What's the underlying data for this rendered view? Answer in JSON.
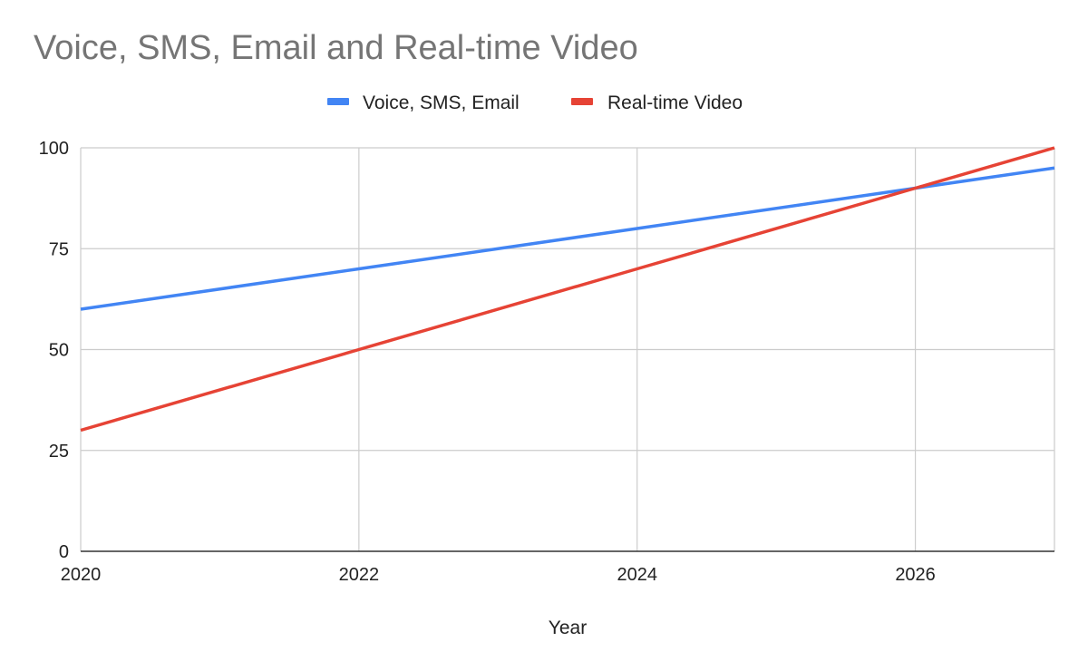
{
  "chart_data": {
    "type": "line",
    "title": "Voice, SMS, Email and Real-time Video",
    "xlabel": "Year",
    "ylabel": "",
    "x": [
      2020,
      2022,
      2024,
      2026,
      2027
    ],
    "xlim": [
      2020,
      2027
    ],
    "ylim": [
      0,
      100
    ],
    "x_ticks": [
      "2020",
      "2022",
      "2024",
      "2026"
    ],
    "y_ticks": [
      "0",
      "25",
      "50",
      "75",
      "100"
    ],
    "grid": true,
    "legend_position": "top",
    "series": [
      {
        "name": "Voice, SMS, Email",
        "color": "#4285F4",
        "values": [
          60,
          70,
          80,
          90,
          95
        ]
      },
      {
        "name": "Real-time Video",
        "color": "#E64335",
        "values": [
          30,
          50,
          70,
          90,
          100
        ]
      }
    ]
  }
}
